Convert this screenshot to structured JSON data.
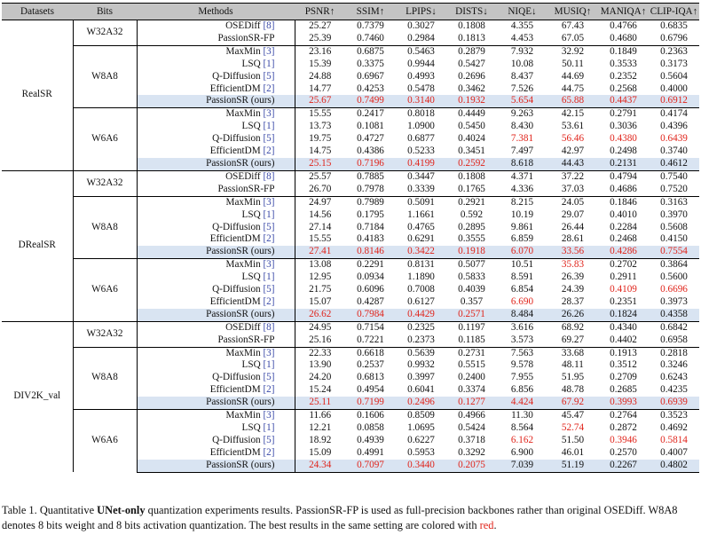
{
  "chart_data": {
    "type": "table",
    "columns": [
      "Datasets",
      "Bits",
      "Methods",
      "PSNR↑",
      "SSIM↑",
      "LPIPS↓",
      "DISTS↓",
      "NIQE↓",
      "MUSIQ↑",
      "MANIQA↑",
      "CLIP-IQA↑"
    ],
    "datasets": [
      {
        "name": "RealSR",
        "groups": [
          {
            "bits": "W32A32",
            "rows": [
              {
                "method": "OSEDiff",
                "ref": "[8]",
                "values": [
                  "25.27",
                  "0.7379",
                  "0.3027",
                  "0.1808",
                  "4.355",
                  "67.43",
                  "0.4766",
                  "0.6835"
                ],
                "red": []
              },
              {
                "method": "PassionSR-FP",
                "ref": "",
                "values": [
                  "25.39",
                  "0.7460",
                  "0.2984",
                  "0.1813",
                  "4.453",
                  "67.05",
                  "0.4680",
                  "0.6796"
                ],
                "red": []
              }
            ]
          },
          {
            "bits": "W8A8",
            "rows": [
              {
                "method": "MaxMin",
                "ref": "[3]",
                "values": [
                  "23.16",
                  "0.6875",
                  "0.5463",
                  "0.2879",
                  "7.932",
                  "32.92",
                  "0.1849",
                  "0.2363"
                ],
                "red": []
              },
              {
                "method": "LSQ",
                "ref": "[1]",
                "values": [
                  "15.39",
                  "0.3375",
                  "0.9944",
                  "0.5427",
                  "10.08",
                  "50.11",
                  "0.3533",
                  "0.3173"
                ],
                "red": []
              },
              {
                "method": "Q-Diffusion",
                "ref": "[5]",
                "values": [
                  "24.88",
                  "0.6967",
                  "0.4993",
                  "0.2696",
                  "8.437",
                  "44.69",
                  "0.2352",
                  "0.5604"
                ],
                "red": []
              },
              {
                "method": "EfficientDM",
                "ref": "[2]",
                "values": [
                  "14.77",
                  "0.4253",
                  "0.5478",
                  "0.3462",
                  "7.526",
                  "44.75",
                  "0.2568",
                  "0.4000"
                ],
                "red": []
              },
              {
                "method": "PassionSR (ours)",
                "ref": "",
                "values": [
                  "25.67",
                  "0.7499",
                  "0.3140",
                  "0.1932",
                  "5.654",
                  "65.88",
                  "0.4437",
                  "0.6912"
                ],
                "red": [
                  0,
                  1,
                  2,
                  3,
                  4,
                  5,
                  6,
                  7
                ],
                "ours": true
              }
            ]
          },
          {
            "bits": "W6A6",
            "rows": [
              {
                "method": "MaxMin",
                "ref": "[3]",
                "values": [
                  "15.55",
                  "0.2417",
                  "0.8018",
                  "0.4449",
                  "9.263",
                  "42.15",
                  "0.2791",
                  "0.4174"
                ],
                "red": []
              },
              {
                "method": "LSQ",
                "ref": "[1]",
                "values": [
                  "13.73",
                  "0.1081",
                  "1.0900",
                  "0.5450",
                  "8.430",
                  "53.61",
                  "0.3036",
                  "0.4396"
                ],
                "red": []
              },
              {
                "method": "Q-Diffusion",
                "ref": "[5]",
                "values": [
                  "19.75",
                  "0.4727",
                  "0.6877",
                  "0.4024",
                  "7.381",
                  "56.46",
                  "0.4380",
                  "0.6439"
                ],
                "red": [
                  4,
                  5,
                  6,
                  7
                ]
              },
              {
                "method": "EfficientDM",
                "ref": "[2]",
                "values": [
                  "14.75",
                  "0.4386",
                  "0.5233",
                  "0.3451",
                  "7.497",
                  "42.97",
                  "0.2498",
                  "0.3740"
                ],
                "red": []
              },
              {
                "method": "PassionSR (ours)",
                "ref": "",
                "values": [
                  "25.15",
                  "0.7196",
                  "0.4199",
                  "0.2592",
                  "8.618",
                  "44.43",
                  "0.2131",
                  "0.4612"
                ],
                "red": [
                  0,
                  1,
                  2,
                  3
                ],
                "ours": true
              }
            ]
          }
        ]
      },
      {
        "name": "DRealSR",
        "groups": [
          {
            "bits": "W32A32",
            "rows": [
              {
                "method": "OSEDiff",
                "ref": "[8]",
                "values": [
                  "25.57",
                  "0.7885",
                  "0.3447",
                  "0.1808",
                  "4.371",
                  "37.22",
                  "0.4794",
                  "0.7540"
                ],
                "red": []
              },
              {
                "method": "PassionSR-FP",
                "ref": "",
                "values": [
                  "26.70",
                  "0.7978",
                  "0.3339",
                  "0.1765",
                  "4.336",
                  "37.03",
                  "0.4686",
                  "0.7520"
                ],
                "red": []
              }
            ]
          },
          {
            "bits": "W8A8",
            "rows": [
              {
                "method": "MaxMin",
                "ref": "[3]",
                "values": [
                  "24.97",
                  "0.7989",
                  "0.5091",
                  "0.2921",
                  "8.215",
                  "24.05",
                  "0.1846",
                  "0.3163"
                ],
                "red": []
              },
              {
                "method": "LSQ",
                "ref": "[1]",
                "values": [
                  "14.56",
                  "0.1795",
                  "1.1661",
                  "0.592",
                  "10.19",
                  "29.07",
                  "0.4010",
                  "0.3970"
                ],
                "red": []
              },
              {
                "method": "Q-Diffusion",
                "ref": "[5]",
                "values": [
                  "27.14",
                  "0.7184",
                  "0.4765",
                  "0.2895",
                  "9.861",
                  "26.44",
                  "0.2284",
                  "0.5608"
                ],
                "red": []
              },
              {
                "method": "EfficientDM",
                "ref": "[2]",
                "values": [
                  "15.55",
                  "0.4183",
                  "0.6291",
                  "0.3555",
                  "6.859",
                  "28.61",
                  "0.2468",
                  "0.4150"
                ],
                "red": []
              },
              {
                "method": "PassionSR (ours)",
                "ref": "",
                "values": [
                  "27.41",
                  "0.8146",
                  "0.3422",
                  "0.1918",
                  "6.070",
                  "33.56",
                  "0.4286",
                  "0.7554"
                ],
                "red": [
                  0,
                  1,
                  2,
                  3,
                  4,
                  5,
                  6,
                  7
                ],
                "ours": true
              }
            ]
          },
          {
            "bits": "W6A6",
            "rows": [
              {
                "method": "MaxMin",
                "ref": "[3]",
                "values": [
                  "13.08",
                  "0.2291",
                  "0.8131",
                  "0.5077",
                  "10.51",
                  "35.83",
                  "0.2702",
                  "0.3864"
                ],
                "red": [
                  5
                ]
              },
              {
                "method": "LSQ",
                "ref": "[1]",
                "values": [
                  "12.95",
                  "0.0934",
                  "1.1890",
                  "0.5833",
                  "8.591",
                  "26.39",
                  "0.2911",
                  "0.5600"
                ],
                "red": []
              },
              {
                "method": "Q-Diffusion",
                "ref": "[5]",
                "values": [
                  "21.75",
                  "0.6096",
                  "0.7008",
                  "0.4039",
                  "6.854",
                  "24.39",
                  "0.4109",
                  "0.6696"
                ],
                "red": [
                  6,
                  7
                ]
              },
              {
                "method": "EfficientDM",
                "ref": "[2]",
                "values": [
                  "15.07",
                  "0.4287",
                  "0.6127",
                  "0.357",
                  "6.690",
                  "28.37",
                  "0.2351",
                  "0.3973"
                ],
                "red": [
                  4
                ]
              },
              {
                "method": "PassionSR (ours)",
                "ref": "",
                "values": [
                  "26.62",
                  "0.7984",
                  "0.4429",
                  "0.2571",
                  "8.484",
                  "26.26",
                  "0.1824",
                  "0.4358"
                ],
                "red": [
                  0,
                  1,
                  2,
                  3
                ],
                "ours": true
              }
            ]
          }
        ]
      },
      {
        "name": "DIV2K_val",
        "groups": [
          {
            "bits": "W32A32",
            "rows": [
              {
                "method": "OSEDiff",
                "ref": "[8]",
                "values": [
                  "24.95",
                  "0.7154",
                  "0.2325",
                  "0.1197",
                  "3.616",
                  "68.92",
                  "0.4340",
                  "0.6842"
                ],
                "red": []
              },
              {
                "method": "PassionSR-FP",
                "ref": "",
                "values": [
                  "25.16",
                  "0.7221",
                  "0.2373",
                  "0.1185",
                  "3.573",
                  "69.27",
                  "0.4402",
                  "0.6958"
                ],
                "red": []
              }
            ]
          },
          {
            "bits": "W8A8",
            "rows": [
              {
                "method": "MaxMin",
                "ref": "[3]",
                "values": [
                  "22.33",
                  "0.6618",
                  "0.5639",
                  "0.2731",
                  "7.563",
                  "33.68",
                  "0.1913",
                  "0.2818"
                ],
                "red": []
              },
              {
                "method": "LSQ",
                "ref": "[1]",
                "values": [
                  "13.90",
                  "0.2537",
                  "0.9932",
                  "0.5515",
                  "9.578",
                  "48.11",
                  "0.3512",
                  "0.3246"
                ],
                "red": []
              },
              {
                "method": "Q-Diffusion",
                "ref": "[5]",
                "values": [
                  "24.20",
                  "0.6813",
                  "0.3997",
                  "0.2400",
                  "7.955",
                  "51.95",
                  "0.2709",
                  "0.6243"
                ],
                "red": []
              },
              {
                "method": "EfficientDM",
                "ref": "[2]",
                "values": [
                  "15.24",
                  "0.4954",
                  "0.6041",
                  "0.3374",
                  "6.856",
                  "48.78",
                  "0.2685",
                  "0.4235"
                ],
                "red": []
              },
              {
                "method": "PassionSR (ours)",
                "ref": "",
                "values": [
                  "25.11",
                  "0.7199",
                  "0.2496",
                  "0.1277",
                  "4.424",
                  "67.92",
                  "0.3993",
                  "0.6939"
                ],
                "red": [
                  0,
                  1,
                  2,
                  3,
                  4,
                  5,
                  6,
                  7
                ],
                "ours": true
              }
            ]
          },
          {
            "bits": "W6A6",
            "rows": [
              {
                "method": "MaxMin",
                "ref": "[3]",
                "values": [
                  "11.66",
                  "0.1606",
                  "0.8509",
                  "0.4966",
                  "11.30",
                  "45.47",
                  "0.2764",
                  "0.3523"
                ],
                "red": []
              },
              {
                "method": "LSQ",
                "ref": "[1]",
                "values": [
                  "12.21",
                  "0.0858",
                  "1.0695",
                  "0.5424",
                  "8.564",
                  "52.74",
                  "0.2872",
                  "0.4692"
                ],
                "red": [
                  5
                ]
              },
              {
                "method": "Q-Diffusion",
                "ref": "[5]",
                "values": [
                  "18.92",
                  "0.4939",
                  "0.6227",
                  "0.3718",
                  "6.162",
                  "51.50",
                  "0.3946",
                  "0.5814"
                ],
                "red": [
                  4,
                  6,
                  7
                ]
              },
              {
                "method": "EfficientDM",
                "ref": "[2]",
                "values": [
                  "15.09",
                  "0.4991",
                  "0.5953",
                  "0.3292",
                  "6.900",
                  "46.01",
                  "0.2570",
                  "0.4007"
                ],
                "red": []
              },
              {
                "method": "PassionSR (ours)",
                "ref": "",
                "values": [
                  "24.34",
                  "0.7097",
                  "0.3440",
                  "0.2075",
                  "7.039",
                  "51.19",
                  "0.2267",
                  "0.4802"
                ],
                "red": [
                  0,
                  1,
                  2,
                  3
                ],
                "ours": true
              }
            ]
          }
        ]
      }
    ]
  },
  "caption": {
    "prefix": "Table 1.  Quantitative ",
    "bold": "UNet-only",
    "middle": " quantization experiments results. PassionSR-FP is used as full-precision backbones rather than original OSEDiff. W8A8 denotes 8 bits weight and 8 bits activation quantization. The best results in the same setting are colored with ",
    "red_word": "red",
    "suffix": "."
  },
  "colors": {
    "header_bg": "#c4c4c4",
    "ours_bg": "#d9e4f2",
    "best": "#e0241b",
    "ref": "#3b4aa8"
  }
}
